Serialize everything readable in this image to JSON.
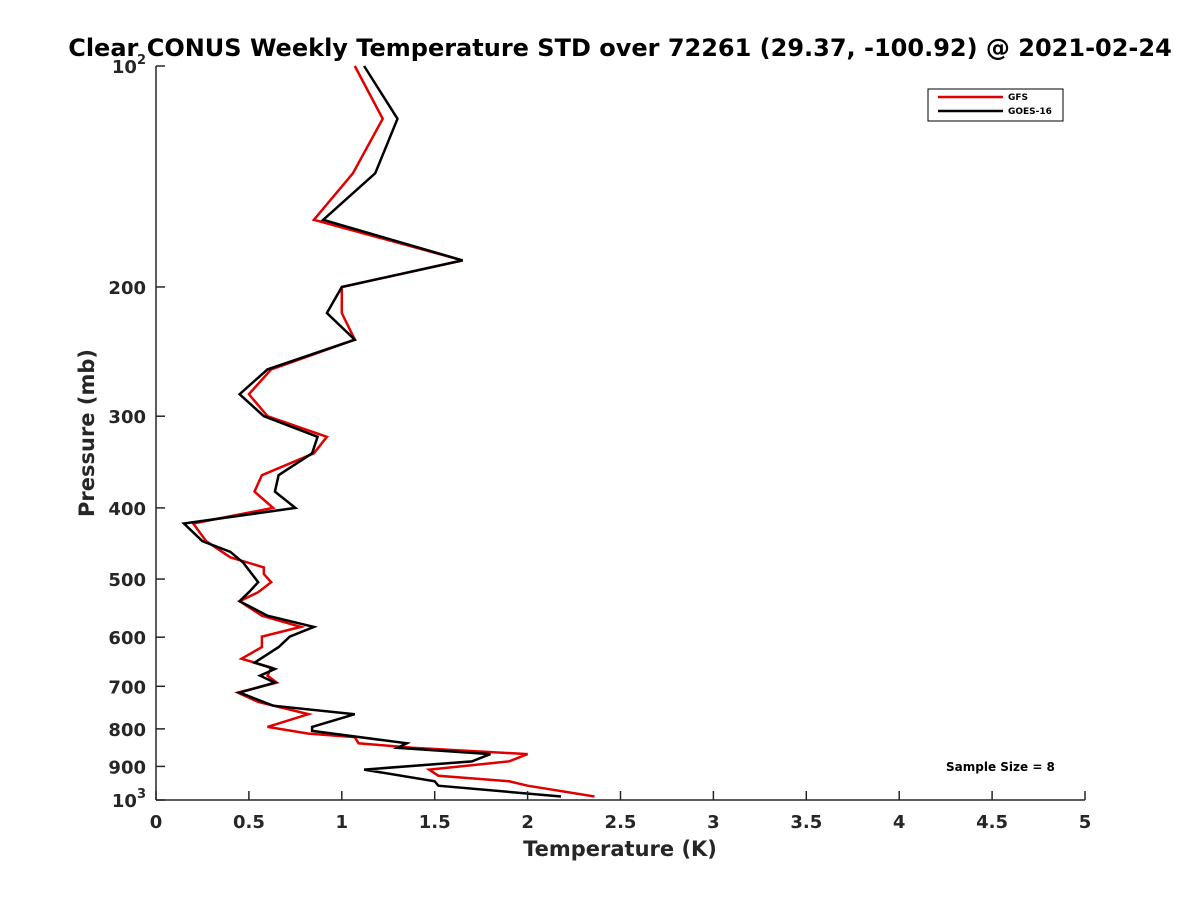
{
  "chart_data": {
    "type": "line",
    "title": "Clear CONUS Weekly Temperature STD over 72261 (29.37, -100.92) @ 2021-02-24",
    "xlabel": "Temperature (K)",
    "ylabel": "Pressure (mb)",
    "xlim": [
      0,
      5
    ],
    "ylim": [
      100,
      1000
    ],
    "y_scale": "log",
    "y_reversed": true,
    "x_ticks": [
      "0",
      "0.5",
      "1",
      "1.5",
      "2",
      "2.5",
      "3",
      "3.5",
      "4",
      "4.5",
      "5"
    ],
    "y_ticks": [
      {
        "value": 100,
        "base": "10",
        "exp": "2"
      },
      {
        "value": 200,
        "label": "200"
      },
      {
        "value": 300,
        "label": "300"
      },
      {
        "value": 400,
        "label": "400"
      },
      {
        "value": 500,
        "label": "500"
      },
      {
        "value": 600,
        "label": "600"
      },
      {
        "value": 700,
        "label": "700"
      },
      {
        "value": 800,
        "label": "800"
      },
      {
        "value": 900,
        "label": "900"
      },
      {
        "value": 1000,
        "base": "10",
        "exp": "3"
      }
    ],
    "legend_position": "top-right",
    "annotation": "Sample Size = 8",
    "series": [
      {
        "name": "GFS",
        "color": "#e00000",
        "points": [
          [
            1.07,
            100
          ],
          [
            1.22,
            118
          ],
          [
            1.06,
            140
          ],
          [
            0.85,
            162
          ],
          [
            1.65,
            184
          ],
          [
            1.0,
            200
          ],
          [
            1.0,
            217
          ],
          [
            1.07,
            236
          ],
          [
            0.62,
            259
          ],
          [
            0.5,
            280
          ],
          [
            0.6,
            300
          ],
          [
            0.92,
            320
          ],
          [
            0.85,
            337
          ],
          [
            0.57,
            361
          ],
          [
            0.53,
            380
          ],
          [
            0.63,
            400
          ],
          [
            0.2,
            420
          ],
          [
            0.27,
            444
          ],
          [
            0.4,
            467
          ],
          [
            0.58,
            482
          ],
          [
            0.58,
            492
          ],
          [
            0.62,
            505
          ],
          [
            0.55,
            521
          ],
          [
            0.45,
            536
          ],
          [
            0.57,
            561
          ],
          [
            0.78,
            581
          ],
          [
            0.57,
            599
          ],
          [
            0.57,
            619
          ],
          [
            0.46,
            642
          ],
          [
            0.62,
            660
          ],
          [
            0.6,
            677
          ],
          [
            0.65,
            692
          ],
          [
            0.44,
            714
          ],
          [
            0.55,
            735
          ],
          [
            0.82,
            764
          ],
          [
            0.6,
            795
          ],
          [
            0.82,
            812
          ],
          [
            1.07,
            821
          ],
          [
            1.09,
            837
          ],
          [
            1.38,
            849
          ],
          [
            2.0,
            866
          ],
          [
            1.9,
            886
          ],
          [
            1.47,
            909
          ],
          [
            1.52,
            927
          ],
          [
            1.9,
            943
          ],
          [
            2.0,
            956
          ],
          [
            2.36,
            989
          ]
        ]
      },
      {
        "name": "GOES-16",
        "color": "#000000",
        "points": [
          [
            1.12,
            100
          ],
          [
            1.3,
            118
          ],
          [
            1.18,
            140
          ],
          [
            0.9,
            162
          ],
          [
            1.65,
            184
          ],
          [
            1.0,
            200
          ],
          [
            0.92,
            217
          ],
          [
            1.07,
            236
          ],
          [
            0.6,
            259
          ],
          [
            0.45,
            280
          ],
          [
            0.58,
            300
          ],
          [
            0.87,
            320
          ],
          [
            0.84,
            337
          ],
          [
            0.66,
            361
          ],
          [
            0.64,
            380
          ],
          [
            0.75,
            400
          ],
          [
            0.15,
            420
          ],
          [
            0.25,
            444
          ],
          [
            0.4,
            459
          ],
          [
            0.47,
            475
          ],
          [
            0.55,
            505
          ],
          [
            0.5,
            521
          ],
          [
            0.45,
            536
          ],
          [
            0.6,
            561
          ],
          [
            0.85,
            581
          ],
          [
            0.72,
            599
          ],
          [
            0.66,
            619
          ],
          [
            0.53,
            650
          ],
          [
            0.64,
            663
          ],
          [
            0.56,
            677
          ],
          [
            0.64,
            692
          ],
          [
            0.45,
            714
          ],
          [
            0.63,
            744
          ],
          [
            1.07,
            764
          ],
          [
            0.84,
            795
          ],
          [
            0.84,
            805
          ],
          [
            1.35,
            837
          ],
          [
            1.3,
            849
          ],
          [
            1.8,
            866
          ],
          [
            1.7,
            886
          ],
          [
            1.12,
            909
          ],
          [
            1.5,
            943
          ],
          [
            1.52,
            956
          ],
          [
            2.18,
            989
          ]
        ]
      }
    ]
  }
}
